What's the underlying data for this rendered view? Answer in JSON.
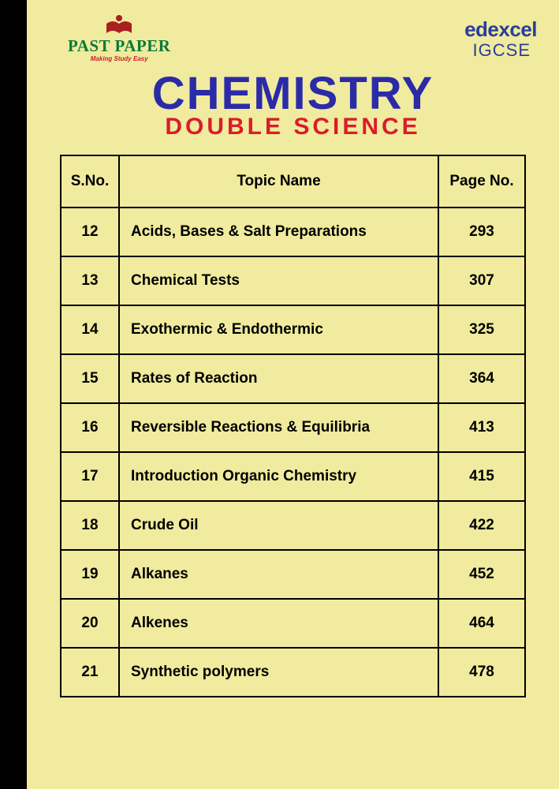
{
  "page_background": "#f0eb9e",
  "black_bar_color": "#000000",
  "logo": {
    "text": "PAST PAPER",
    "text_color": "#0a7a3a",
    "subtitle": "Making Study Easy",
    "subtitle_color": "#c8202a",
    "icon_color": "#a82020"
  },
  "brand": {
    "top": "edexcel",
    "bottom": "IGCSE",
    "color": "#2b3e9a"
  },
  "title": {
    "main": "CHEMISTRY",
    "main_color": "#2b2ba8",
    "sub": "DOUBLE SCIENCE",
    "sub_color": "#d91d2a"
  },
  "table": {
    "border_color": "#000000",
    "headers": {
      "sno": "S.No.",
      "topic": "Topic Name",
      "page": "Page No."
    },
    "rows": [
      {
        "sno": "12",
        "topic": "Acids, Bases & Salt Preparations",
        "page": "293"
      },
      {
        "sno": "13",
        "topic": "Chemical Tests",
        "page": "307"
      },
      {
        "sno": "14",
        "topic": "Exothermic & Endothermic",
        "page": "325"
      },
      {
        "sno": "15",
        "topic": "Rates of Reaction",
        "page": "364"
      },
      {
        "sno": "16",
        "topic": "Reversible Reactions & Equilibria",
        "page": "413"
      },
      {
        "sno": "17",
        "topic": "Introduction Organic Chemistry",
        "page": "415"
      },
      {
        "sno": "18",
        "topic": "Crude Oil",
        "page": "422"
      },
      {
        "sno": "19",
        "topic": "Alkanes",
        "page": "452"
      },
      {
        "sno": "20",
        "topic": "Alkenes",
        "page": "464"
      },
      {
        "sno": "21",
        "topic": "Synthetic polymers",
        "page": "478"
      }
    ]
  }
}
